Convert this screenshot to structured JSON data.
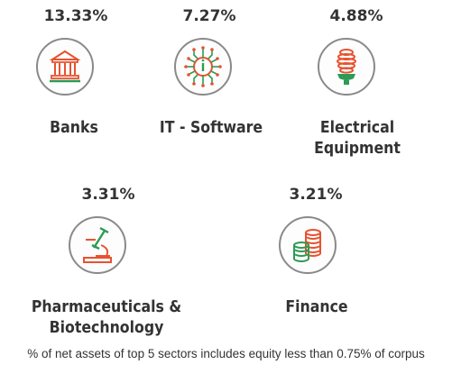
{
  "chart_data": {
    "type": "table",
    "title": "",
    "sectors": [
      {
        "name_lines": [
          "Banks"
        ],
        "percent_label": "13.33%",
        "value": 13.33,
        "icon": "bank-icon"
      },
      {
        "name_lines": [
          "IT - Software"
        ],
        "percent_label": "7.27%",
        "value": 7.27,
        "icon": "chip-icon"
      },
      {
        "name_lines": [
          "Electrical",
          "Equipment"
        ],
        "percent_label": "4.88%",
        "value": 4.88,
        "icon": "lightbulb-icon"
      },
      {
        "name_lines": [
          "Pharmaceuticals &",
          "Biotechnology"
        ],
        "percent_label": "3.31%",
        "value": 3.31,
        "icon": "microscope-icon"
      },
      {
        "name_lines": [
          "Finance"
        ],
        "percent_label": "3.21%",
        "value": 3.21,
        "icon": "coins-icon"
      }
    ],
    "footnote": "% of net assets of top 5 sectors includes equity less than 0.75% of corpus",
    "colors": {
      "red": "#e8522f",
      "green": "#2e9a55",
      "gray": "#8a8a8a"
    }
  }
}
